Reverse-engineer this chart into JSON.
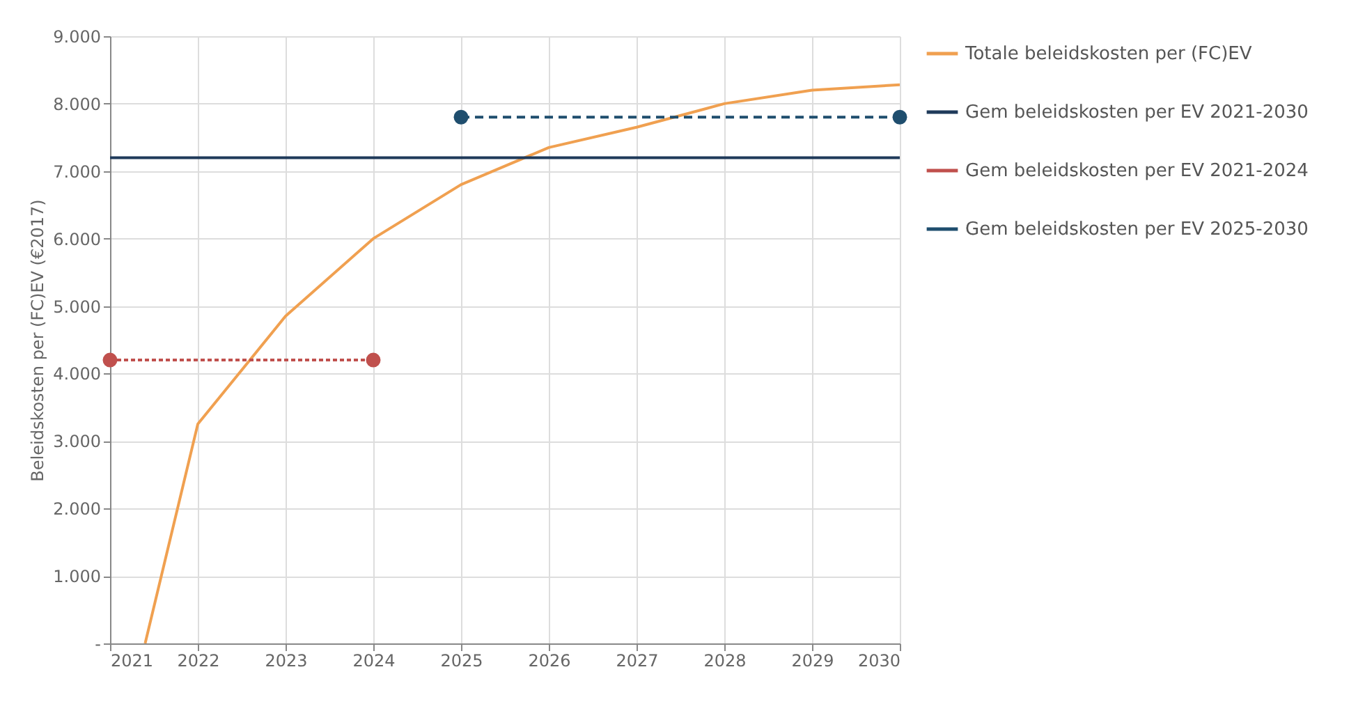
{
  "chart_data": {
    "type": "line",
    "ylabel": "Beleidskosten per (FC)EV (€2017)",
    "xlim": [
      2021,
      2030
    ],
    "xticks": [
      2021,
      2022,
      2023,
      2024,
      2025,
      2026,
      2027,
      2028,
      2029,
      2030
    ],
    "ylim": [
      0,
      9000
    ],
    "yticks": [
      {
        "value": 0,
        "label": "-"
      },
      {
        "value": 1000,
        "label": "1.000"
      },
      {
        "value": 2000,
        "label": "2.000"
      },
      {
        "value": 3000,
        "label": "3.000"
      },
      {
        "value": 4000,
        "label": "4.000"
      },
      {
        "value": 5000,
        "label": "5.000"
      },
      {
        "value": 6000,
        "label": "6.000"
      },
      {
        "value": 7000,
        "label": "7.000"
      },
      {
        "value": 8000,
        "label": "8.000"
      },
      {
        "value": 9000,
        "label": "9.000"
      }
    ],
    "grid": true,
    "legend": "right",
    "series": [
      {
        "name": "Totale beleidskosten per (FC)EV",
        "color": "#f0a050",
        "x": [
          2021.4,
          2022,
          2023,
          2024,
          2025,
          2026,
          2027,
          2028,
          2029,
          2030
        ],
        "values": [
          0,
          3250,
          4850,
          6000,
          6800,
          7350,
          7650,
          8000,
          8200,
          8280
        ]
      },
      {
        "name": "Gem beleidskosten per EV 2021-2030",
        "color": "#1f3a5a",
        "x": [
          2021,
          2030
        ],
        "values": [
          7200,
          7200
        ]
      },
      {
        "name": "Gem beleidskosten per EV 2021-2024",
        "color": "#c0504d",
        "x": [
          2021,
          2024
        ],
        "values": [
          4200,
          4200
        ],
        "line_style": "dotted",
        "marker": "circle"
      },
      {
        "name": "Gem beleidskosten per EV 2025-2030",
        "color": "#1f4e6e",
        "x": [
          2025,
          2030
        ],
        "values": [
          7800,
          7800
        ],
        "line_style": "dashed",
        "marker": "circle"
      }
    ]
  }
}
